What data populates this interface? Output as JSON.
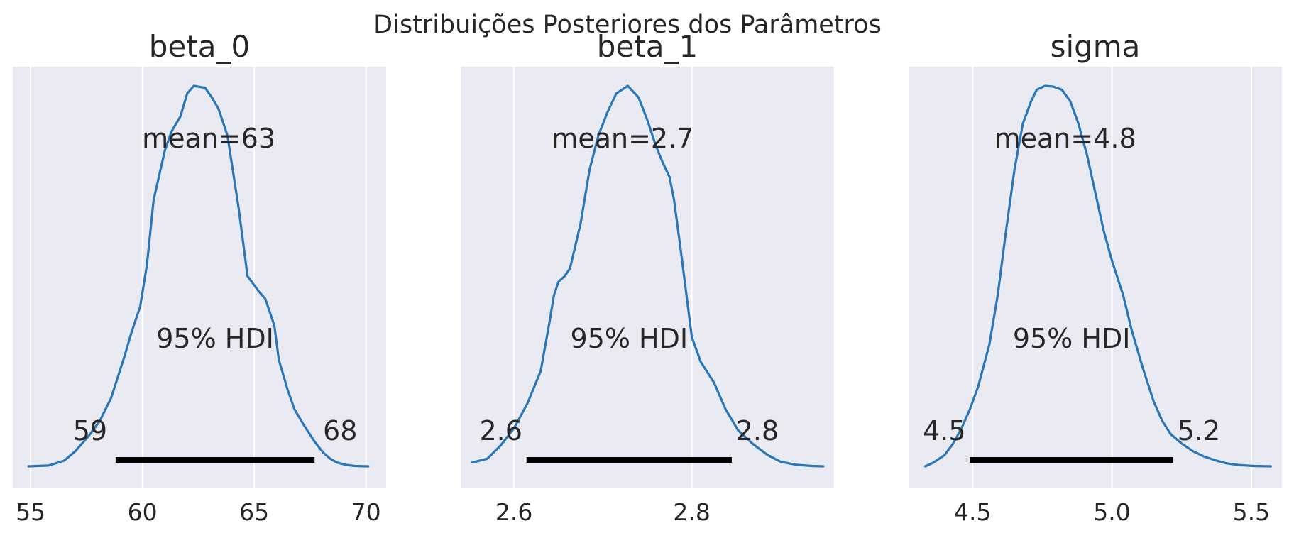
{
  "figure": {
    "suptitle": "Distribuições Posteriores dos Parâmetros"
  },
  "style": {
    "axes_bg": "#E9EAF2",
    "grid_color": "#FFFFFF",
    "curve_color": "#2A76B6",
    "hdi_color": "#000000",
    "text_color": "#262626"
  },
  "chart_data": [
    {
      "type": "area",
      "title": "beta_0",
      "xlim": [
        54.2,
        70.9
      ],
      "ylim": [
        0,
        1
      ],
      "xticks": [
        55,
        60,
        65,
        70
      ],
      "xtick_labels": [
        "55",
        "60",
        "65",
        "70"
      ],
      "grid": true,
      "mean_label": "mean=63",
      "hdi_label": "95% HDI",
      "hdi": [
        58.8,
        67.7
      ],
      "hdi_labels": [
        "59",
        "68"
      ],
      "density": {
        "x": [
          54.9,
          55.8,
          56.5,
          57.0,
          57.6,
          58.1,
          58.6,
          59.2,
          59.5,
          59.9,
          60.2,
          60.5,
          61.0,
          61.3,
          61.7,
          62.0,
          62.3,
          62.8,
          63.1,
          63.4,
          63.8,
          64.3,
          64.7,
          65.2,
          65.5,
          65.9,
          66.1,
          66.5,
          66.8,
          67.2,
          67.7,
          68.1,
          68.4,
          68.7,
          69.1,
          69.5,
          70.1
        ],
        "y": [
          0,
          0.002,
          0.015,
          0.04,
          0.08,
          0.12,
          0.18,
          0.29,
          0.35,
          0.42,
          0.53,
          0.7,
          0.83,
          0.88,
          0.92,
          0.98,
          1.0,
          0.995,
          0.97,
          0.94,
          0.87,
          0.68,
          0.5,
          0.46,
          0.44,
          0.37,
          0.28,
          0.2,
          0.15,
          0.11,
          0.065,
          0.035,
          0.02,
          0.01,
          0.004,
          0.001,
          0
        ]
      }
    },
    {
      "type": "area",
      "title": "beta_1",
      "xlim": [
        2.54,
        2.96
      ],
      "ylim": [
        0,
        1
      ],
      "xticks": [
        2.6,
        2.8
      ],
      "xtick_labels": [
        "2.6",
        "2.8"
      ],
      "grid": true,
      "mean_label": "mean=2.7",
      "hdi_label": "95% HDI",
      "hdi": [
        2.614,
        2.845
      ],
      "hdi_labels": [
        "2.6",
        "2.8"
      ],
      "density": {
        "x": [
          2.553,
          2.57,
          2.585,
          2.6,
          2.615,
          2.63,
          2.64,
          2.645,
          2.65,
          2.657,
          2.663,
          2.675,
          2.685,
          2.695,
          2.705,
          2.715,
          2.728,
          2.74,
          2.75,
          2.76,
          2.767,
          2.775,
          2.78,
          2.788,
          2.8,
          2.81,
          2.825,
          2.838,
          2.852,
          2.868,
          2.885,
          2.9,
          2.918,
          2.935,
          2.948
        ],
        "y": [
          0.01,
          0.02,
          0.055,
          0.1,
          0.165,
          0.25,
          0.38,
          0.45,
          0.485,
          0.5,
          0.52,
          0.64,
          0.78,
          0.87,
          0.93,
          0.98,
          1.0,
          0.97,
          0.91,
          0.84,
          0.8,
          0.76,
          0.7,
          0.56,
          0.34,
          0.275,
          0.22,
          0.15,
          0.095,
          0.06,
          0.03,
          0.012,
          0.004,
          0.001,
          0
        ]
      }
    },
    {
      "type": "area",
      "title": "sigma",
      "xlim": [
        4.27,
        5.61
      ],
      "ylim": [
        0,
        1
      ],
      "xticks": [
        4.5,
        5.0,
        5.5
      ],
      "xtick_labels": [
        "4.5",
        "5.0",
        "5.5"
      ],
      "grid": true,
      "mean_label": "mean=4.8",
      "hdi_label": "95% HDI",
      "hdi": [
        4.49,
        5.22
      ],
      "hdi_labels": [
        "4.5",
        "5.2"
      ],
      "density": {
        "x": [
          4.33,
          4.36,
          4.4,
          4.43,
          4.46,
          4.49,
          4.52,
          4.56,
          4.59,
          4.62,
          4.65,
          4.68,
          4.71,
          4.73,
          4.76,
          4.79,
          4.82,
          4.85,
          4.88,
          4.91,
          4.94,
          4.97,
          5.0,
          5.04,
          5.07,
          5.11,
          5.15,
          5.18,
          5.21,
          5.25,
          5.29,
          5.33,
          5.37,
          5.41,
          5.46,
          5.51,
          5.57
        ],
        "y": [
          0,
          0.01,
          0.03,
          0.06,
          0.1,
          0.15,
          0.21,
          0.32,
          0.45,
          0.62,
          0.78,
          0.9,
          0.96,
          0.99,
          1.0,
          0.998,
          0.99,
          0.96,
          0.9,
          0.82,
          0.72,
          0.62,
          0.54,
          0.45,
          0.36,
          0.26,
          0.17,
          0.12,
          0.085,
          0.06,
          0.04,
          0.026,
          0.016,
          0.008,
          0.003,
          0.001,
          0
        ]
      }
    }
  ]
}
